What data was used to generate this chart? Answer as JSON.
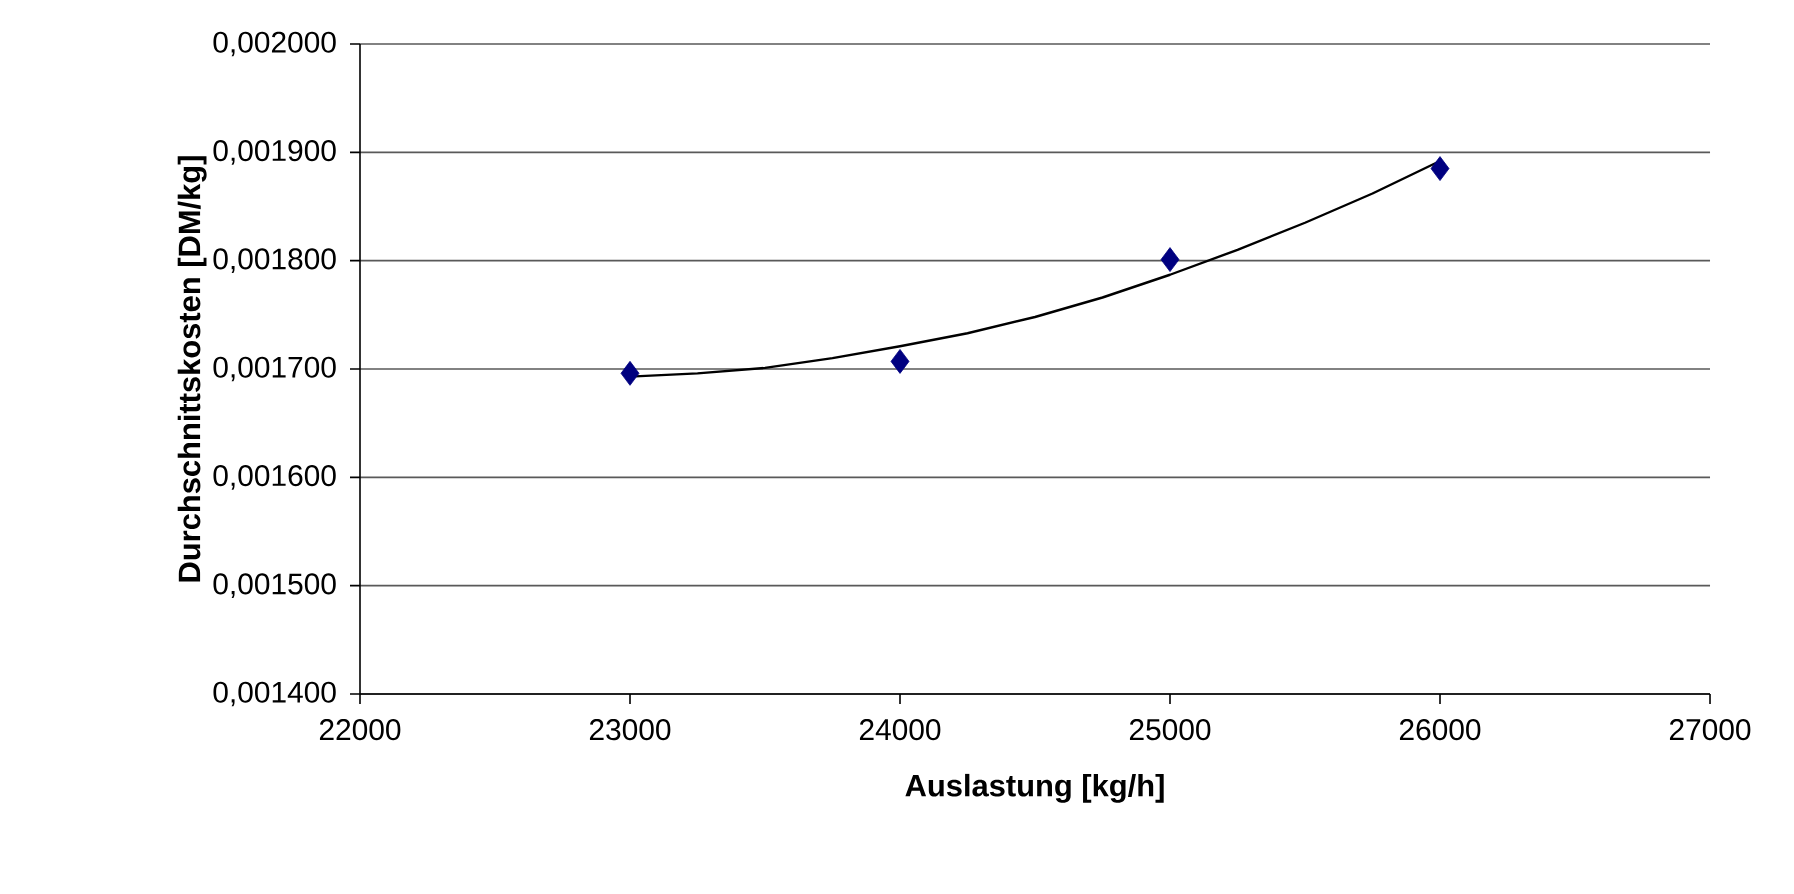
{
  "chart_data": {
    "type": "scatter",
    "xlabel": "Auslastung [kg/h]",
    "ylabel": "Durchschnittskosten [DM/kg]",
    "xlim": [
      22000,
      27000
    ],
    "xticks": [
      22000,
      23000,
      24000,
      25000,
      26000,
      27000
    ],
    "ylim": [
      0.0014,
      0.002
    ],
    "yticks": [
      {
        "value": 0.0014,
        "label": "0,001400"
      },
      {
        "value": 0.0015,
        "label": "0,001500"
      },
      {
        "value": 0.0016,
        "label": "0,001600"
      },
      {
        "value": 0.0017,
        "label": "0,001700"
      },
      {
        "value": 0.0018,
        "label": "0,001800"
      },
      {
        "value": 0.0019,
        "label": "0,001900"
      },
      {
        "value": 0.002,
        "label": "0,002000"
      }
    ],
    "grid": "y",
    "series": [
      {
        "marker": "diamond",
        "color": "#000080",
        "x": [
          24000
        ],
        "values": [
          0.001707
        ]
      },
      {
        "marker": "diamond",
        "color": "#000080",
        "x": [
          23000,
          25000,
          26000
        ],
        "values": [
          0.001696,
          0.001801,
          0.001885
        ]
      },
      {
        "type": "line",
        "marker": "none",
        "line_style": "solid",
        "color": "#000000",
        "x": [
          23000,
          23250,
          23500,
          23750,
          24000,
          24250,
          24500,
          24750,
          25000,
          25250,
          25500,
          25750,
          26000
        ],
        "values": [
          0.001693,
          0.001696,
          0.001701,
          0.00171,
          0.001721,
          0.001733,
          0.001748,
          0.001766,
          0.001787,
          0.00181,
          0.001835,
          0.001862,
          0.001892
        ]
      }
    ]
  }
}
